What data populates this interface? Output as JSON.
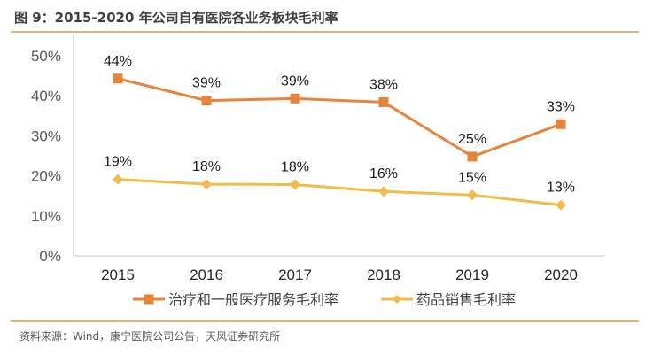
{
  "header": {
    "title": "图 9：2015-2020 年公司自有医院各业务板块毛利率"
  },
  "footer": {
    "source": "资料来源：Wind，康宁医院公司公告，天风证券研究所"
  },
  "chart_data": {
    "type": "line",
    "title": "图 9：2015-2020 年公司自有医院各业务板块毛利率",
    "xlabel": "",
    "ylabel": "",
    "x": [
      "2015",
      "2016",
      "2017",
      "2018",
      "2019",
      "2020"
    ],
    "ylim": [
      0,
      50
    ],
    "yticks": [
      "0%",
      "10%",
      "20%",
      "30%",
      "40%",
      "50%"
    ],
    "ytick_values": [
      0,
      10,
      20,
      30,
      40,
      50
    ],
    "grid": false,
    "legend_position": "bottom",
    "series": [
      {
        "name": "治疗和一般医疗服务毛利率",
        "values": [
          44.3,
          38.8,
          39.3,
          38.4,
          24.8,
          32.9
        ],
        "labels": [
          "44%",
          "39%",
          "39%",
          "38%",
          "25%",
          "33%"
        ],
        "color": "#e8843a",
        "marker": "square"
      },
      {
        "name": "药品销售毛利率",
        "values": [
          19.1,
          17.9,
          17.8,
          16.1,
          15.2,
          12.7
        ],
        "labels": [
          "19%",
          "18%",
          "18%",
          "16%",
          "15%",
          "13%"
        ],
        "color": "#f2bb4a",
        "marker": "diamond"
      }
    ],
    "axis_color": "#d9d9d9"
  }
}
